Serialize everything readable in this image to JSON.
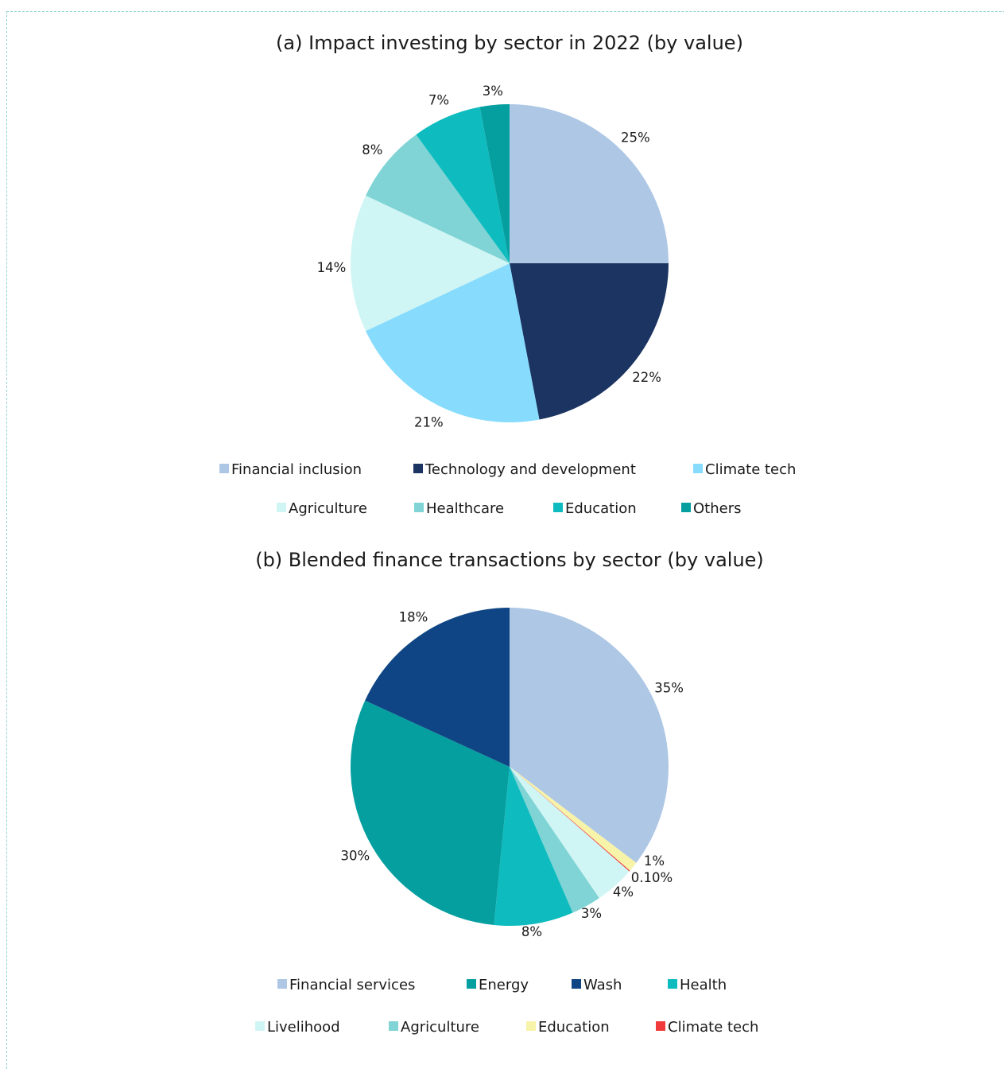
{
  "chart_data": [
    {
      "type": "pie",
      "title": "(a) Impact investing by sector in 2022 (by value)",
      "categories": [
        "Financial inclusion",
        "Technology and development",
        "Climate tech",
        "Agriculture",
        "Healthcare",
        "Education",
        "Others"
      ],
      "values": [
        25,
        22,
        21,
        14,
        8,
        7,
        3
      ],
      "labels": [
        "25%",
        "22%",
        "21%",
        "14%",
        "8%",
        "7%",
        "3%"
      ],
      "colors": [
        "#adc7e5",
        "#1b3461",
        "#87dcfd",
        "#d0f5f5",
        "#80d4d5",
        "#0ebcbf",
        "#069fa0"
      ],
      "legend_position": "bottom"
    },
    {
      "type": "pie",
      "title": "(b) Blended finance transactions by sector (by value)",
      "categories": [
        "Financial services",
        "Education",
        "Climate tech",
        "Livelihood",
        "Agriculture",
        "Health",
        "Energy",
        "Wash"
      ],
      "values": [
        35,
        1,
        0.1,
        4,
        3,
        8,
        30,
        18
      ],
      "labels": [
        "35%",
        "1%",
        "0.10%",
        "4%",
        "3%",
        "8%",
        "30%",
        "18%"
      ],
      "colors": [
        "#adc7e5",
        "#f7f3a8",
        "#ef3b3b",
        "#d0f5f5",
        "#80d4d5",
        "#0ebcbf",
        "#069fa0",
        "#0f4584"
      ],
      "legend_order": [
        "Financial services",
        "Energy",
        "Wash",
        "Health",
        "Livelihood",
        "Agriculture",
        "Education",
        "Climate tech"
      ],
      "legend_position": "bottom"
    }
  ]
}
